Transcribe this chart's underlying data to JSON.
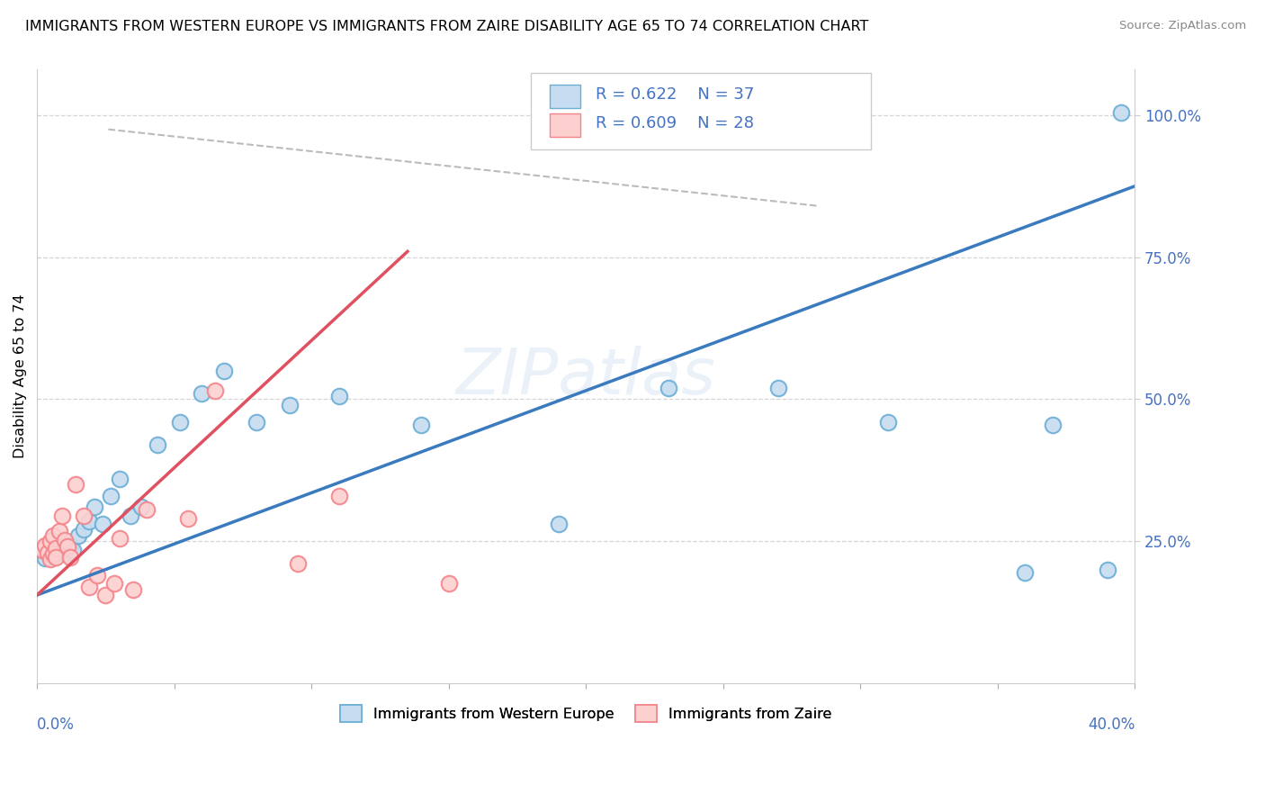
{
  "title": "IMMIGRANTS FROM WESTERN EUROPE VS IMMIGRANTS FROM ZAIRE DISABILITY AGE 65 TO 74 CORRELATION CHART",
  "source": "Source: ZipAtlas.com",
  "ylabel": "Disability Age 65 to 74",
  "x_min": 0.0,
  "x_max": 0.4,
  "y_min": 0.0,
  "y_max": 1.08,
  "right_yticks": [
    0.25,
    0.5,
    0.75,
    1.0
  ],
  "right_yticklabels": [
    "25.0%",
    "50.0%",
    "75.0%",
    "100.0%"
  ],
  "blue_scatter_x": [
    0.002,
    0.003,
    0.004,
    0.005,
    0.006,
    0.007,
    0.008,
    0.009,
    0.01,
    0.011,
    0.012,
    0.013,
    0.015,
    0.017,
    0.019,
    0.021,
    0.024,
    0.027,
    0.03,
    0.034,
    0.038,
    0.044,
    0.052,
    0.06,
    0.068,
    0.08,
    0.092,
    0.11,
    0.14,
    0.19,
    0.23,
    0.27,
    0.31,
    0.36,
    0.39,
    0.37,
    0.395
  ],
  "blue_scatter_y": [
    0.235,
    0.22,
    0.23,
    0.225,
    0.24,
    0.228,
    0.245,
    0.235,
    0.228,
    0.238,
    0.242,
    0.235,
    0.26,
    0.27,
    0.285,
    0.31,
    0.28,
    0.33,
    0.36,
    0.295,
    0.31,
    0.42,
    0.46,
    0.51,
    0.55,
    0.46,
    0.49,
    0.505,
    0.455,
    0.28,
    0.52,
    0.52,
    0.46,
    0.195,
    0.2,
    0.455,
    1.005
  ],
  "pink_scatter_x": [
    0.002,
    0.003,
    0.004,
    0.005,
    0.005,
    0.006,
    0.006,
    0.007,
    0.007,
    0.008,
    0.009,
    0.01,
    0.011,
    0.012,
    0.014,
    0.017,
    0.019,
    0.022,
    0.025,
    0.028,
    0.03,
    0.035,
    0.04,
    0.055,
    0.065,
    0.095,
    0.11,
    0.15
  ],
  "pink_scatter_y": [
    0.235,
    0.242,
    0.23,
    0.25,
    0.218,
    0.228,
    0.26,
    0.238,
    0.222,
    0.268,
    0.295,
    0.252,
    0.24,
    0.222,
    0.35,
    0.295,
    0.17,
    0.19,
    0.155,
    0.175,
    0.255,
    0.165,
    0.305,
    0.29,
    0.515,
    0.21,
    0.33,
    0.175
  ],
  "blue_trend_x": [
    0.0,
    0.4
  ],
  "blue_trend_y": [
    0.155,
    0.875
  ],
  "pink_trend_x": [
    0.0,
    0.135
  ],
  "pink_trend_y": [
    0.155,
    0.76
  ],
  "dashed_line_x": [
    0.026,
    0.285
  ],
  "dashed_line_y": [
    0.975,
    0.84
  ],
  "watermark_text": "ZIPatlas",
  "legend_r_blue": "R = 0.622",
  "legend_n_blue": "N = 37",
  "legend_r_pink": "R = 0.609",
  "legend_n_pink": "N = 28"
}
